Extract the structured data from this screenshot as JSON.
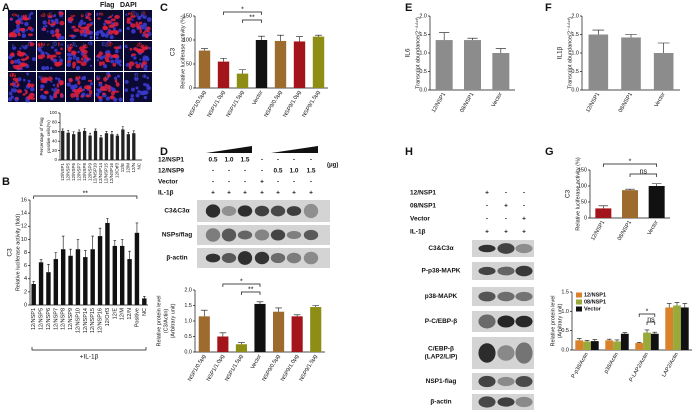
{
  "panels": [
    "A",
    "B",
    "C",
    "D",
    "E",
    "F",
    "G",
    "H"
  ],
  "micrographs": {
    "legend": [
      "Flag",
      "DAPI"
    ],
    "labels": [
      "12/NSP1",
      "12/NSP5",
      "12/NSP6",
      "12/NSP7",
      "12/NSP8",
      "12/NSP9",
      "12/NSP10",
      "12/NSP14",
      "12/NSP15",
      "12/NSP16",
      "12/Orf3",
      "12/E",
      "12/M",
      "12/N",
      "Control"
    ]
  },
  "blots": [
    {
      "conditions": [
        {
          "name": "12/NSP1",
          "values": [
            "0.5",
            "1.0",
            "1.5",
            "-",
            "-",
            "-",
            "-"
          ]
        },
        {
          "name": "12/NSP9",
          "values": [
            "-",
            "-",
            "-",
            "-",
            "0.5",
            "1.0",
            "1.5"
          ]
        },
        {
          "name": "Vector",
          "values": [
            "-",
            "-",
            "-",
            "+",
            "-",
            "-",
            "-"
          ]
        },
        {
          "name": "IL-1β",
          "values": [
            "+",
            "+",
            "+",
            "+",
            "+",
            "+",
            "+"
          ]
        }
      ],
      "unit": "(μg)",
      "rows": [
        [
          "C3&C3α"
        ],
        [
          "NSPs/flag"
        ],
        [
          "β-actin"
        ]
      ]
    },
    {
      "conditions": [
        {
          "name": "12/NSP1",
          "values": [
            "+",
            "-",
            "-"
          ]
        },
        {
          "name": "08/NSP1",
          "values": [
            "-",
            "+",
            "-"
          ]
        },
        {
          "name": "Vector",
          "values": [
            "-",
            "-",
            "+"
          ]
        },
        {
          "name": "IL-1β",
          "values": [
            "+",
            "+",
            "+"
          ]
        }
      ],
      "rows": [
        [
          "C3&C3α"
        ],
        [
          "P-p38-MAPK"
        ],
        [
          "p38-MAPK"
        ],
        [
          "P-C/EBP-β"
        ],
        [
          "C/EBP-β",
          "(LAP2/LIP)"
        ],
        [
          "NSP1-flag"
        ],
        [
          "β-actin"
        ]
      ]
    }
  ],
  "chart_data": [
    {
      "type": "bar",
      "ylabel": [
        "Percentage of Flag",
        "positive cells(%)"
      ],
      "categories": [
        "12/NSP1",
        "12/NSP5",
        "12/NSP6",
        "12/NSP7",
        "12/NSP8",
        "12/NSP9",
        "12/NSP10",
        "12/NSP14",
        "12/NSP15",
        "12/NSP16",
        "12/Orf3",
        "12/E",
        "12/M",
        "12/N",
        "NC"
      ],
      "values": [
        62,
        58,
        55,
        60,
        62,
        52,
        62,
        48,
        57,
        55,
        52,
        65,
        55,
        57,
        0
      ],
      "errors": [
        4,
        5,
        5,
        4,
        5,
        5,
        4,
        4,
        4,
        6,
        3,
        6,
        4,
        5,
        0
      ],
      "color": "#222222",
      "ylim": [
        0,
        100
      ],
      "yticks": [
        0,
        20,
        40,
        60,
        80,
        100
      ]
    },
    {
      "type": "bar",
      "title": "C3",
      "ylabel": [
        "Relative luciferase activity (fold)"
      ],
      "categories": [
        "12/NSP1",
        "12/NSP5",
        "12/NSP6",
        "12/NSP7",
        "12/NSP8",
        "12/NSP9",
        "12/NSP10",
        "12/NSP14",
        "12/NSP15",
        "12/NSP16",
        "12/Orf3",
        "12/E",
        "12/M",
        "12/N",
        "Positive",
        "NC"
      ],
      "values": [
        3.2,
        6.5,
        5,
        7,
        8.5,
        7.5,
        8.5,
        7.3,
        8.5,
        10.5,
        12.5,
        9,
        9,
        7,
        11,
        1
      ],
      "errors": [
        0.4,
        0.4,
        1.2,
        1,
        2,
        1,
        1.5,
        1,
        2,
        1.2,
        0.7,
        0.8,
        1,
        1.2,
        1.5,
        0.3
      ],
      "color": "#111111",
      "ylim": [
        0,
        16
      ],
      "yticks": [
        0,
        2,
        4,
        6,
        8,
        10,
        12,
        14,
        16
      ],
      "annotations": [
        "**"
      ],
      "xlabel": "+IL-1β"
    },
    {
      "type": "bar",
      "title": "C3",
      "ylabel": [
        "Relative luciferase activity (%)"
      ],
      "categories": [
        "NSP1/0.5μg",
        "NSP1/1.0μg",
        "NSP1/1.5μg",
        "Vector",
        "NSP9/0.5μg",
        "NSP9/1.0μg",
        "NSP9/1.5μg"
      ],
      "values": [
        78,
        55,
        30,
        100,
        98,
        97,
        107
      ],
      "errors": [
        4,
        7,
        8,
        8,
        12,
        10,
        3
      ],
      "colors": [
        "#9e6b2f",
        "#a3151a",
        "#8e8e16",
        "#111111",
        "#9e6b2f",
        "#a3151a",
        "#8e8e16"
      ],
      "ylim": [
        0,
        150
      ],
      "yticks": [
        0,
        50,
        100,
        150
      ],
      "annotations": [
        "*",
        "**"
      ]
    },
    {
      "type": "bar",
      "ylabel": [
        "Relative protein level",
        "(C3/Actin)",
        "(Arbitrary unit)"
      ],
      "categories": [
        "NSP1/0.5μg",
        "NSP1/1.0μg",
        "NSP1/1.5μg",
        "Vector",
        "NSP9/0.5μg",
        "NSP9/1.0μg",
        "NSP9/1.5μg"
      ],
      "values": [
        1.15,
        0.5,
        0.25,
        1.55,
        1.3,
        1.15,
        1.45
      ],
      "errors": [
        0.2,
        0.12,
        0.05,
        0.07,
        0.12,
        0.05,
        0.05
      ],
      "colors": [
        "#9e6b2f",
        "#a3151a",
        "#8e8e16",
        "#111111",
        "#9e6b2f",
        "#a3151a",
        "#8e8e16"
      ],
      "ylim": [
        0,
        2
      ],
      "yticks": [
        {
          "value": 0,
          "label": "0.0"
        },
        0.5,
        {
          "value": 1,
          "label": "1.0"
        },
        1.5,
        {
          "value": 2,
          "label": "2.0"
        }
      ],
      "annotations": [
        "*",
        "**"
      ]
    },
    {
      "type": "bar",
      "title": "IL6",
      "ylabel": [
        "Transcript abundance(2⁻ᐞᐞᶜᵗ)"
      ],
      "categories": [
        "12/NSP1",
        "08/NSP1",
        "Vector"
      ],
      "values": [
        1.35,
        1.35,
        1.0
      ],
      "errors": [
        0.2,
        0.05,
        0.12
      ],
      "color": "#8c8c8c",
      "ylim": [
        0,
        2
      ],
      "yticks": [
        {
          "value": 0,
          "label": "0.0"
        },
        0.5,
        {
          "value": 1,
          "label": "1.0"
        },
        1.5,
        {
          "value": 2,
          "label": "2.0"
        }
      ]
    },
    {
      "type": "bar",
      "title": "IL1β",
      "ylabel": [
        "Transcript abundance(2⁻ᐞᐞᶜᵗ)"
      ],
      "categories": [
        "12/NSP1",
        "08/NSP1",
        "Vector"
      ],
      "values": [
        1.5,
        1.42,
        1.0
      ],
      "errors": [
        0.12,
        0.08,
        0.27
      ],
      "color": "#8c8c8c",
      "ylim": [
        0,
        2
      ],
      "yticks": [
        {
          "value": 0,
          "label": "0.0"
        },
        0.5,
        {
          "value": 1,
          "label": "1.0"
        },
        1.5,
        {
          "value": 2,
          "label": "2.0"
        }
      ]
    },
    {
      "type": "bar",
      "title": "C3",
      "ylabel": [
        "Relative luciferase activity (%)"
      ],
      "categories": [
        "12/NSP1",
        "08/NSP1",
        "Vector"
      ],
      "values": [
        30,
        87,
        100
      ],
      "errors": [
        8,
        3,
        7
      ],
      "colors": [
        "#a3151a",
        "#9e6b2f",
        "#111111"
      ],
      "ylim": [
        0,
        150
      ],
      "yticks": [
        0,
        50,
        100,
        150
      ],
      "annotations": [
        "*",
        "ns"
      ]
    },
    {
      "type": "bar",
      "ylabel": [
        "Relative protein level",
        "(Arbitrary unit)"
      ],
      "categories": [
        "P-p38/Actin",
        "p38/Actin",
        "P-LAP2/Actin",
        "LAP2/Actin"
      ],
      "series": [
        {
          "name": "12/NSP1",
          "color": "#d9822b",
          "values": [
            0.25,
            0.25,
            0.18,
            1.1
          ],
          "errors": [
            0.05,
            0.03,
            0.02,
            0.1
          ]
        },
        {
          "name": "08/NSP1",
          "color": "#9aaa3a",
          "values": [
            0.22,
            0.22,
            0.45,
            1.15
          ],
          "errors": [
            0.03,
            0.04,
            0.07,
            0.08
          ]
        },
        {
          "name": "Vector",
          "color": "#111111",
          "values": [
            0.23,
            0.42,
            0.42,
            1.1
          ],
          "errors": [
            0.04,
            0.03,
            0.04,
            0.1
          ]
        }
      ],
      "ylim": [
        0,
        1.5
      ],
      "yticks": [
        {
          "value": 0,
          "label": "0.0"
        },
        0.5,
        {
          "value": 1,
          "label": "1.0"
        },
        1.5
      ],
      "annotations": [
        "*",
        "ns"
      ],
      "legend": "upper left"
    }
  ]
}
